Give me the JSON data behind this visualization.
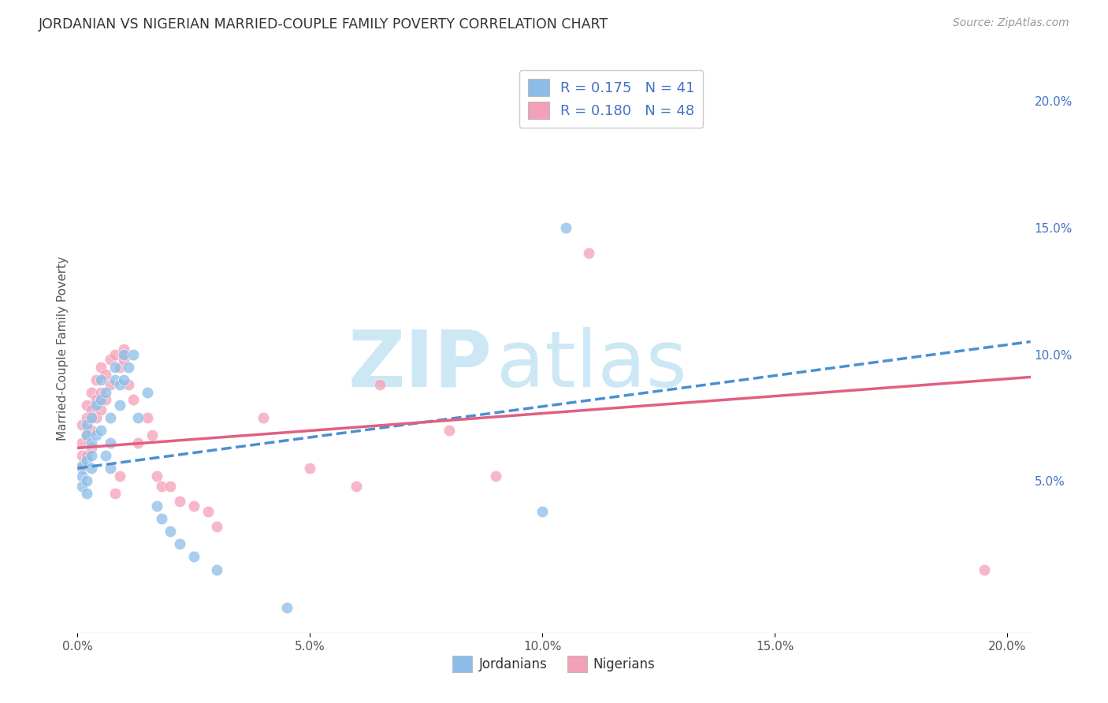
{
  "title": "JORDANIAN VS NIGERIAN MARRIED-COUPLE FAMILY POVERTY CORRELATION CHART",
  "source": "Source: ZipAtlas.com",
  "ylabel": "Married-Couple Family Poverty",
  "xlim": [
    0.0,
    0.205
  ],
  "ylim": [
    -0.01,
    0.215
  ],
  "jordanian_color": "#8bbde8",
  "nigerian_color": "#f4a0b8",
  "trendline_jordan_color": "#4a8fd4",
  "trendline_nigeria_color": "#e06080",
  "background_color": "#ffffff",
  "watermark_zip": "ZIP",
  "watermark_atlas": "atlas",
  "watermark_color": "#cde8f5",
  "jordan_trendline_x": [
    0.0,
    0.205
  ],
  "jordan_trendline_y": [
    0.055,
    0.105
  ],
  "nigeria_trendline_x": [
    0.0,
    0.205
  ],
  "nigeria_trendline_y": [
    0.063,
    0.091
  ],
  "jordan_x": [
    0.001,
    0.001,
    0.001,
    0.002,
    0.002,
    0.002,
    0.002,
    0.002,
    0.003,
    0.003,
    0.003,
    0.003,
    0.004,
    0.004,
    0.005,
    0.005,
    0.005,
    0.006,
    0.006,
    0.007,
    0.007,
    0.007,
    0.008,
    0.008,
    0.009,
    0.009,
    0.01,
    0.01,
    0.011,
    0.012,
    0.013,
    0.015,
    0.017,
    0.018,
    0.02,
    0.022,
    0.025,
    0.03,
    0.045,
    0.1,
    0.105
  ],
  "jordan_y": [
    0.056,
    0.052,
    0.048,
    0.072,
    0.068,
    0.058,
    0.05,
    0.045,
    0.075,
    0.065,
    0.06,
    0.055,
    0.08,
    0.068,
    0.09,
    0.082,
    0.07,
    0.085,
    0.06,
    0.075,
    0.065,
    0.055,
    0.095,
    0.09,
    0.088,
    0.08,
    0.1,
    0.09,
    0.095,
    0.1,
    0.075,
    0.085,
    0.04,
    0.035,
    0.03,
    0.025,
    0.02,
    0.015,
    0.0,
    0.038,
    0.15
  ],
  "nigeria_x": [
    0.001,
    0.001,
    0.001,
    0.001,
    0.002,
    0.002,
    0.002,
    0.002,
    0.003,
    0.003,
    0.003,
    0.003,
    0.004,
    0.004,
    0.004,
    0.005,
    0.005,
    0.005,
    0.006,
    0.006,
    0.007,
    0.007,
    0.008,
    0.008,
    0.009,
    0.009,
    0.01,
    0.01,
    0.011,
    0.012,
    0.013,
    0.015,
    0.016,
    0.017,
    0.018,
    0.02,
    0.022,
    0.025,
    0.028,
    0.03,
    0.04,
    0.05,
    0.06,
    0.065,
    0.08,
    0.09,
    0.11,
    0.195
  ],
  "nigeria_y": [
    0.072,
    0.065,
    0.06,
    0.055,
    0.08,
    0.075,
    0.068,
    0.06,
    0.085,
    0.078,
    0.07,
    0.063,
    0.09,
    0.082,
    0.075,
    0.095,
    0.085,
    0.078,
    0.092,
    0.082,
    0.098,
    0.088,
    0.1,
    0.045,
    0.095,
    0.052,
    0.102,
    0.098,
    0.088,
    0.082,
    0.065,
    0.075,
    0.068,
    0.052,
    0.048,
    0.048,
    0.042,
    0.04,
    0.038,
    0.032,
    0.075,
    0.055,
    0.048,
    0.088,
    0.07,
    0.052,
    0.14,
    0.015
  ],
  "legend_labels": [
    "R = 0.175   N = 41",
    "R = 0.180   N = 48"
  ]
}
